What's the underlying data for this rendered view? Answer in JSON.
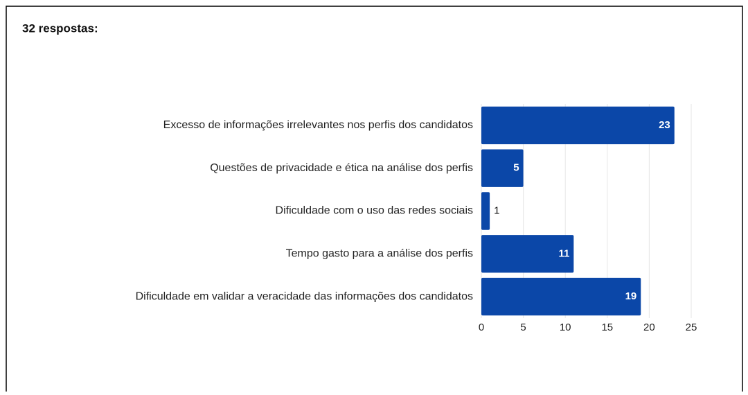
{
  "chart_data": {
    "type": "bar",
    "orientation": "horizontal",
    "title": "32 respostas:",
    "categories": [
      "Excesso de informações irrelevantes nos perfis dos candidatos",
      "Questões de privacidade e ética na análise dos perfis",
      "Dificuldade com o uso das redes sociais",
      "Tempo gasto para a análise dos perfis",
      "Dificuldade em validar a veracidade das informações dos candidatos"
    ],
    "values": [
      23,
      5,
      1,
      11,
      19
    ],
    "color": "#0b47a8",
    "xlim": [
      0,
      25
    ],
    "xticks": [
      0,
      5,
      10,
      15,
      20,
      25
    ],
    "grid": true
  }
}
